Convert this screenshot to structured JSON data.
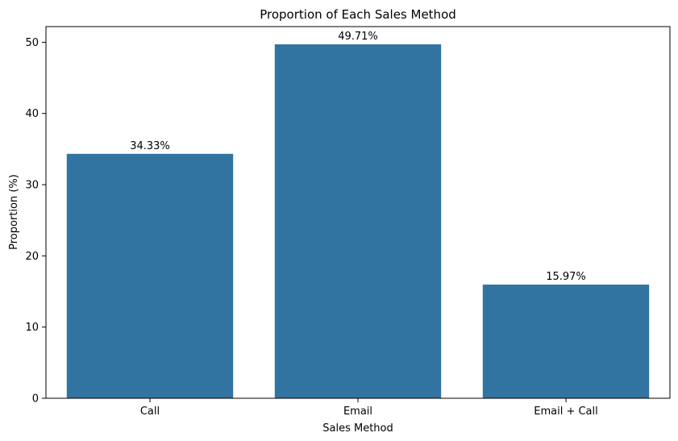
{
  "chart_data": {
    "type": "bar",
    "title": "Proportion of Each Sales Method",
    "xlabel": "Sales Method",
    "ylabel": "Proportion (%)",
    "categories": [
      "Call",
      "Email",
      "Email + Call"
    ],
    "values": [
      34.33,
      49.71,
      15.97
    ],
    "data_labels": [
      "34.33%",
      "49.71%",
      "15.97%"
    ],
    "ylim": [
      0,
      52.2
    ],
    "yticks": [
      0,
      10,
      20,
      30,
      40,
      50
    ],
    "bar_color": "#3274a1",
    "grid": false,
    "legend": "none"
  }
}
